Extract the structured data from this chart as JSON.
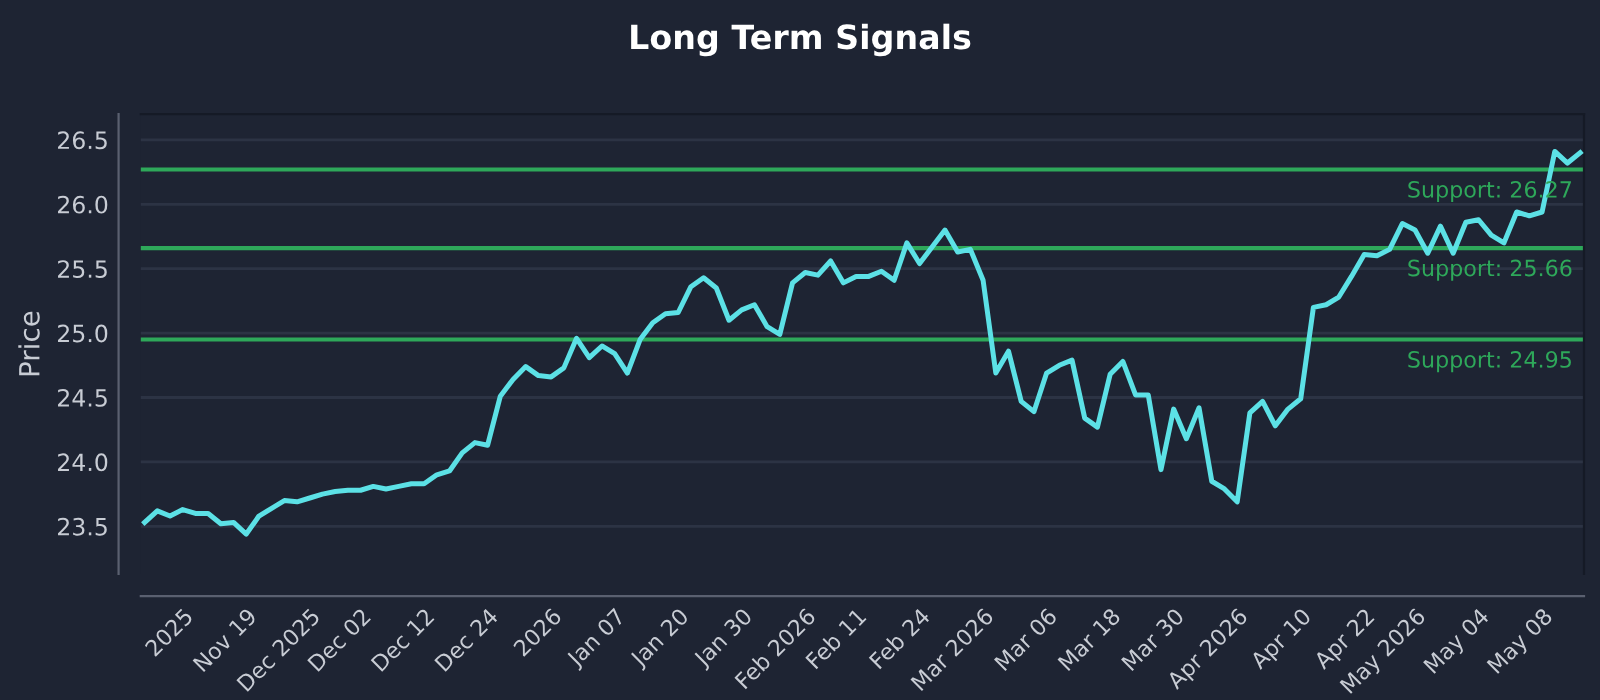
{
  "chart_data": {
    "type": "line",
    "title": "Long Term Signals",
    "ylabel": "Price",
    "categories": [
      null,
      null,
      null,
      "2025",
      null,
      null,
      null,
      null,
      "Nov 19",
      null,
      null,
      null,
      null,
      "Dec 2025",
      null,
      null,
      null,
      "Dec 02",
      null,
      null,
      null,
      null,
      "Dec 12",
      null,
      null,
      null,
      null,
      "Dec 24",
      null,
      null,
      null,
      null,
      "2026",
      null,
      null,
      null,
      null,
      "Jan 07",
      null,
      null,
      null,
      null,
      "Jan 20",
      null,
      null,
      null,
      null,
      "Jan 30",
      null,
      null,
      null,
      null,
      "Feb 2026",
      null,
      null,
      null,
      "Feb 11",
      null,
      null,
      null,
      null,
      "Feb 24",
      null,
      null,
      null,
      null,
      "Mar 2026",
      null,
      null,
      null,
      null,
      "Mar 06",
      null,
      null,
      null,
      null,
      "Mar 18",
      null,
      null,
      null,
      null,
      "Mar 30",
      null,
      null,
      null,
      null,
      "Apr 2026",
      null,
      null,
      null,
      null,
      "Apr 10",
      null,
      null,
      null,
      null,
      "Apr 22",
      null,
      null,
      null,
      "May 2026",
      null,
      null,
      null,
      null,
      "May 04",
      null,
      null,
      null,
      null,
      "May 08",
      null,
      null,
      null
    ],
    "series": [
      {
        "color": "#5ce1e6",
        "values": [
          23.53,
          23.62,
          23.58,
          23.63,
          23.6,
          23.6,
          23.52,
          23.53,
          23.44,
          23.58,
          23.64,
          23.7,
          23.69,
          23.72,
          23.75,
          23.77,
          23.78,
          23.78,
          23.81,
          23.79,
          23.81,
          23.83,
          23.83,
          23.9,
          23.93,
          24.07,
          24.15,
          24.13,
          24.51,
          24.64,
          24.74,
          24.67,
          24.66,
          24.73,
          24.96,
          24.81,
          24.9,
          24.84,
          24.69,
          24.95,
          25.08,
          25.15,
          25.16,
          25.36,
          25.43,
          25.35,
          25.1,
          25.18,
          25.22,
          25.05,
          24.99,
          25.39,
          25.47,
          25.45,
          25.56,
          25.39,
          25.44,
          25.44,
          25.48,
          25.41,
          25.7,
          25.54,
          25.67,
          25.8,
          25.63,
          25.65,
          25.41,
          24.69,
          24.86,
          24.47,
          24.39,
          24.69,
          24.75,
          24.79,
          24.34,
          24.27,
          24.68,
          24.78,
          24.52,
          24.52,
          23.94,
          24.41,
          24.18,
          24.42,
          23.85,
          23.79,
          23.69,
          24.38,
          24.47,
          24.28,
          24.41,
          24.49,
          25.2,
          25.22,
          25.28,
          25.44,
          25.61,
          25.6,
          25.65,
          25.85,
          25.8,
          25.62,
          25.83,
          25.62,
          25.86,
          25.88,
          25.76,
          25.7,
          25.94,
          25.91,
          25.94,
          26.41,
          26.32,
          26.4
        ]
      }
    ],
    "ylim": [
      23.13,
      26.7
    ],
    "yticks": [
      {
        "value": 23.5,
        "label": "23.5"
      },
      {
        "value": 24.0,
        "label": "24.0"
      },
      {
        "value": 24.5,
        "label": "24.5"
      },
      {
        "value": 25.0,
        "label": "25.0"
      },
      {
        "value": 25.5,
        "label": "25.5"
      },
      {
        "value": 26.0,
        "label": "26.0"
      },
      {
        "value": 26.5,
        "label": "26.5"
      }
    ],
    "ref_lines": [
      {
        "axis": "y",
        "value": 26.27,
        "label": "Support: 26.27",
        "color": "#2ea85a"
      },
      {
        "axis": "y",
        "value": 25.66,
        "label": "Support: 25.66",
        "color": "#2ea85a"
      },
      {
        "axis": "y",
        "value": 24.95,
        "label": "Support: 24.95",
        "color": "#2ea85a"
      }
    ],
    "grid": "y",
    "marker": "none",
    "line_style": "solid"
  }
}
